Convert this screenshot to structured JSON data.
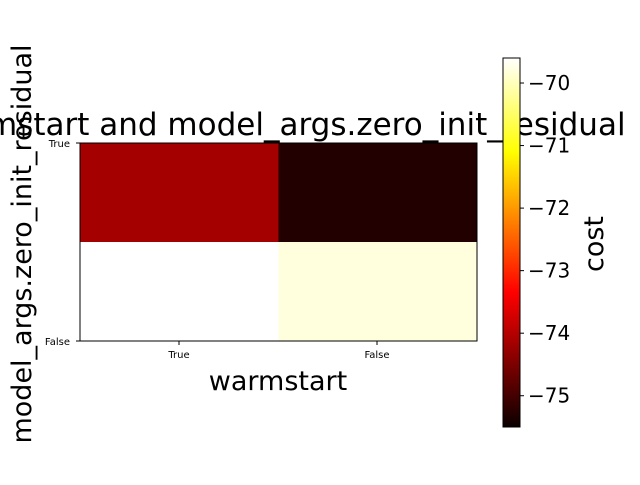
{
  "chart_data": {
    "type": "heatmap",
    "title": "warmstart and model_args.zero_init_residual",
    "xlabel": "warmstart",
    "ylabel": "model_args.zero_init_residual",
    "x_categories": [
      "True",
      "False"
    ],
    "y_categories": [
      "True",
      "False"
    ],
    "values": [
      [
        -74.2,
        -75.3
      ],
      [
        -69.5,
        -69.8
      ]
    ],
    "colormap": "hot",
    "colorbar": {
      "label": "cost",
      "min": -75.5,
      "max": -69.6,
      "ticks": [
        "−70",
        "−71",
        "−72",
        "−73",
        "−74",
        "−75"
      ],
      "tick_values": [
        -70,
        -71,
        -72,
        -73,
        -74,
        -75
      ]
    }
  }
}
